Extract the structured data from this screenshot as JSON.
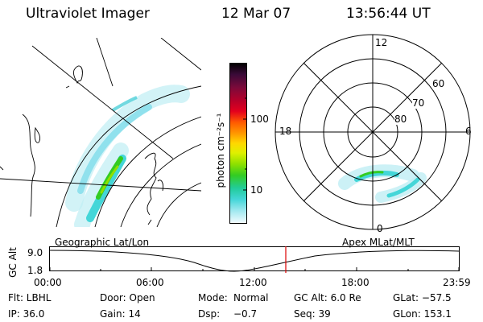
{
  "header": {
    "instrument": "Ultraviolet Imager",
    "date": "12 Mar 07",
    "time": "13:56:44 UT"
  },
  "colorbar": {
    "unit_label": "photon cm⁻²s⁻¹",
    "tick_100": "100",
    "tick_10": "10",
    "stops": [
      "#000000",
      "#3a0a38",
      "#7a0a3a",
      "#b4002a",
      "#e3001e",
      "#ff5a00",
      "#ff9a00",
      "#ffd800",
      "#dff000",
      "#8ee000",
      "#33cc22",
      "#22cc9a",
      "#44d6d8",
      "#9fe8ef",
      "#d6f6fa",
      "#f4fcff"
    ]
  },
  "polar": {
    "mlt_12": "12",
    "mlt_18": "18",
    "mlt_6": "6",
    "mlt_0": "0",
    "lat_60": "60",
    "lat_70": "70",
    "lat_80": "80"
  },
  "timeline": {
    "y_title": "GC Alt",
    "left_title": "Geographic Lat/Lon",
    "right_title": "Apex MLat/MLT",
    "y_top": "9.0",
    "y_bottom": "1.8",
    "ticks": [
      "00:00",
      "06:00",
      "12:00",
      "18:00",
      "23:59"
    ]
  },
  "info": {
    "filter": "Flt: LBHL",
    "door": "Door: Open",
    "mode_label": "Mode:",
    "mode_value": "Normal",
    "gc_alt": "GC Alt: 6.0 Re",
    "glat": "GLat: −57.5",
    "ip": "IP: 36.0",
    "gain": "Gain: 14",
    "dsp_label": "Dsp:",
    "dsp_value": "−0.7",
    "seq": "Seq: 39",
    "glon": "GLon: 153.1"
  }
}
